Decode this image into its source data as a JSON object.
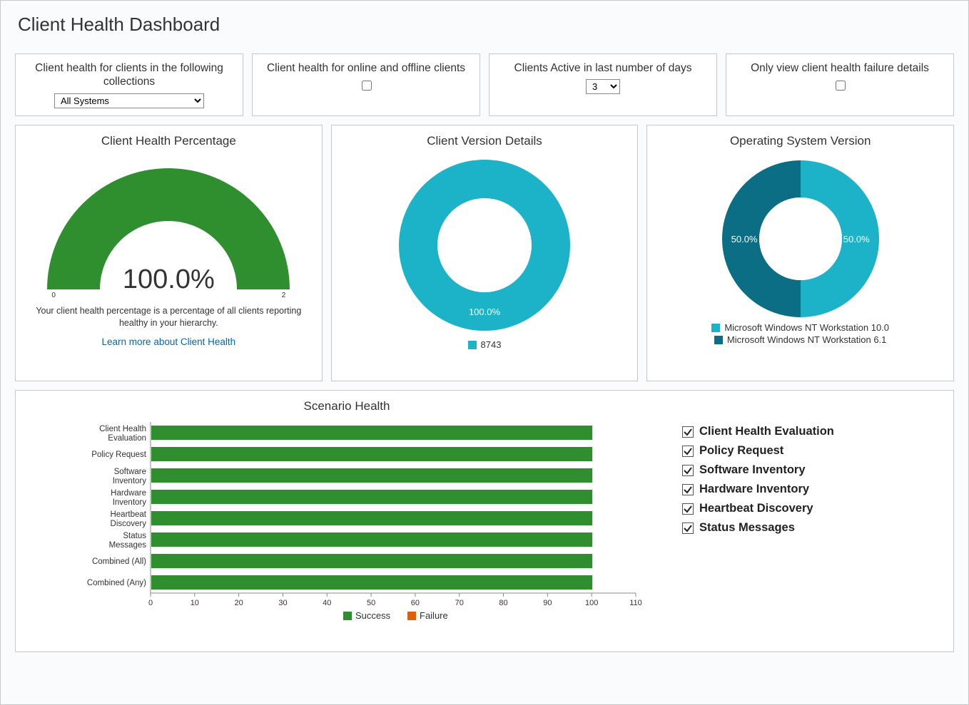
{
  "page_title": "Client Health Dashboard",
  "filters": {
    "collections": {
      "label": "Client health for clients in the following collections",
      "value": "All Systems"
    },
    "online_offline": {
      "label": "Client health for online and offline clients",
      "checked": false
    },
    "active_days": {
      "label": "Clients Active in last number of days",
      "value": "3"
    },
    "failure_only": {
      "label": "Only view client health failure details",
      "checked": false
    }
  },
  "gauge": {
    "title": "Client Health Percentage",
    "value_text": "100.0%",
    "percent": 100,
    "min_tick": "0",
    "max_tick": "2",
    "color": "#2f8f2f",
    "caption": "Your client health percentage is a percentage of all clients reporting healthy in your hierarchy.",
    "link_text": "Learn more about Client Health"
  },
  "version_chart": {
    "title": "Client Version Details",
    "type": "donut",
    "slices": [
      {
        "label": "8743",
        "percent": 100,
        "percent_text": "100.0%",
        "color": "#1cb3c8"
      }
    ],
    "center_hole_color": "#ffffff"
  },
  "os_chart": {
    "title": "Operating System Version",
    "type": "donut",
    "slices": [
      {
        "label": "Microsoft Windows NT Workstation 10.0",
        "percent": 50,
        "percent_text": "50.0%",
        "color": "#1cb3c8"
      },
      {
        "label": "Microsoft Windows NT Workstation 6.1",
        "percent": 50,
        "percent_text": "50.0%",
        "color": "#0b6e84"
      }
    ],
    "center_hole_color": "#ffffff"
  },
  "scenario": {
    "title": "Scenario Health",
    "type": "bar",
    "xmax": 110,
    "xtick_step": 10,
    "bar_value": 100,
    "colors": {
      "success": "#2f8f2f",
      "failure": "#e06000"
    },
    "categories": [
      "Client Health Evaluation",
      "Policy Request",
      "Software Inventory",
      "Hardware Inventory",
      "Heartbeat Discovery",
      "Status Messages",
      "Combined (All)",
      "Combined (Any)"
    ],
    "legend": {
      "success": "Success",
      "failure": "Failure"
    },
    "checklist": [
      "Client Health Evaluation",
      "Policy Request",
      "Software Inventory",
      "Hardware Inventory",
      "Heartbeat Discovery",
      "Status Messages"
    ]
  }
}
